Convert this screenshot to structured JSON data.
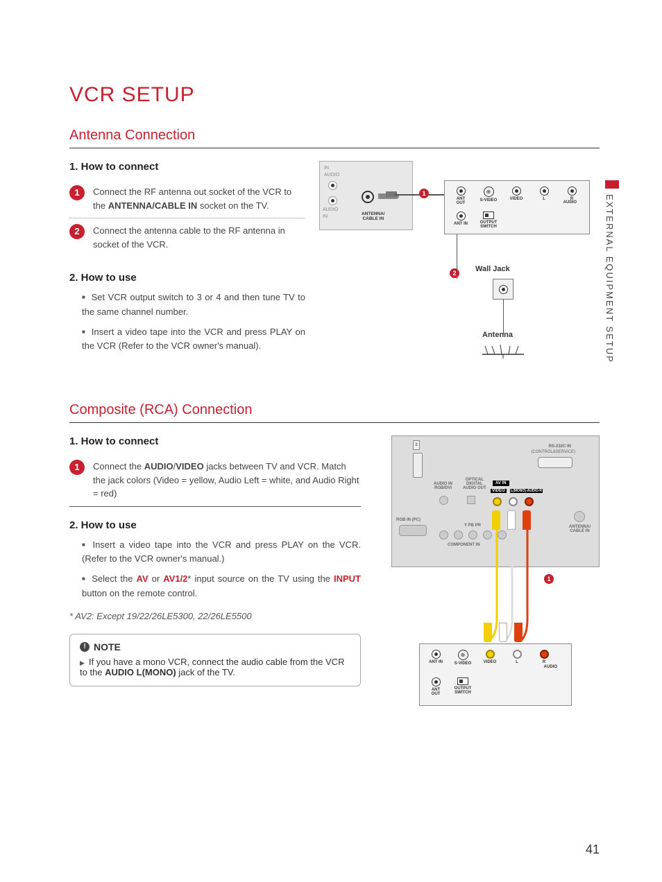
{
  "page_number": "41",
  "side_label": "EXTERNAL EQUIPMENT SETUP",
  "title": "VCR SETUP",
  "section1": {
    "heading": "Antenna Connection",
    "sub1": "1. How to connect",
    "step1_html": "Connect the RF antenna out socket of the VCR to the <b>ANTENNA/CABLE IN</b> socket on the TV.",
    "step2": "Connect the antenna cable to the RF antenna in socket of the VCR.",
    "sub2": "2. How to use",
    "use1": "Set VCR output switch to 3 or 4 and then tune TV to the same channel number.",
    "use2": "Insert a video tape into the VCR and press PLAY on the VCR (Refer to the VCR owner's manual)."
  },
  "section2": {
    "heading": "Composite (RCA) Connection",
    "sub1": "1. How to connect",
    "step1_html": "Connect the <b>AUDIO</b>/<b>VIDEO</b> jacks between TV and VCR. Match the jack colors (Video = yellow, Audio Left = white, and Audio Right = red)",
    "sub2": "2. How to use",
    "use1": "Insert a video tape into the VCR and press PLAY on the VCR. (Refer to the VCR owner's manual.)",
    "use2_html": "Select the <span class='red'>AV</span> or <span class='red'>AV1/2</span>* input source on the TV using the <span class='red'>INPUT</span> button on the remote control.",
    "footnote": "* AV2: Except 19/22/26LE5300, 22/26LE5500"
  },
  "note": {
    "label": "NOTE",
    "body_html": "If you have a mono VCR, connect the audio cable from the VCR to the <b>AUDIO L(MONO)</b> jack of the TV."
  },
  "diagram1": {
    "tv_label": "ANTENNA/\nCABLE IN",
    "vcr_ports_top": [
      "ANT OUT",
      "S-VIDEO",
      "VIDEO",
      "L",
      "R"
    ],
    "vcr_audio_label": "AUDIO",
    "vcr_ports_bottom": [
      "ANT IN",
      "OUTPUT\nSWITCH"
    ],
    "wall_label": "Wall Jack",
    "antenna_label": "Antenna",
    "colors": {
      "accent": "#c8202f",
      "box": "#e8e8e8",
      "line": "#555555"
    }
  },
  "diagram2": {
    "tv_labels": {
      "rs232": "RS-232C IN",
      "rs232_sub": "(CONTROL&SERVICE)",
      "audio_in": "AUDIO IN\nRGB/DVI",
      "optical": "OPTICAL\nDIGITAL\nAUDIO OUT",
      "avin": "AV IN",
      "video": "VIDEO",
      "lmono": "L(MONO)-AUDIO-R",
      "comp": "COMPONENT IN",
      "ypbpr": "Y  PB  PR",
      "ant": "ANTENNA/\nCABLE IN",
      "rgbin": "RGB IN (PC)",
      "n2": "2"
    },
    "vcr_ports_top": [
      "ANT IN",
      "S-VIDEO",
      "VIDEO",
      "L",
      "R"
    ],
    "vcr_audio_label": "AUDIO",
    "vcr_ports_bottom": [
      "ANT OUT",
      "OUTPUT\nSWITCH"
    ],
    "rca_colors": {
      "video": "#f0d000",
      "left": "#ffffff",
      "right": "#e04010"
    }
  }
}
